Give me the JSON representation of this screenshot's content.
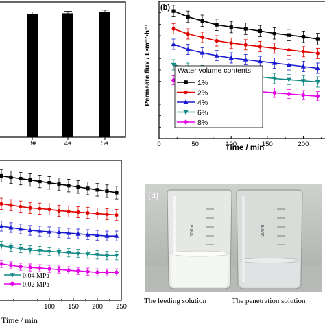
{
  "chart_data": [
    {
      "panel": "a",
      "type": "bar",
      "categories": [
        "3#",
        "4#",
        "5#"
      ],
      "values": [
        32.8,
        33.0,
        33.3
      ],
      "ylim": [
        0,
        36
      ],
      "colors": {
        "bar": "#000000"
      }
    },
    {
      "panel": "b",
      "type": "line",
      "panel_label": "(b)",
      "xlabel": "Time / min",
      "ylabel": "Permeate flux / L•m⁻²•h⁻¹",
      "xlim": [
        0,
        230
      ],
      "ylim": [
        10,
        34
      ],
      "xticks": [
        0,
        50,
        100,
        150,
        200
      ],
      "legend_title": "Water volume contents",
      "legend_position": "bottom-left",
      "x": [
        20,
        40,
        60,
        80,
        100,
        120,
        140,
        160,
        180,
        200,
        220
      ],
      "series": [
        {
          "name": "1%",
          "color": "#000000",
          "marker": "square",
          "values": [
            32.3,
            31.3,
            30.6,
            29.9,
            29.5,
            29.2,
            28.8,
            28.4,
            28.1,
            27.8,
            27.4
          ],
          "error": 1.0
        },
        {
          "name": "2%",
          "color": "#e00000",
          "marker": "circle",
          "values": [
            29.2,
            28.3,
            27.7,
            27.1,
            26.7,
            26.4,
            26.1,
            25.8,
            25.5,
            25.2,
            24.9
          ],
          "error": 0.9
        },
        {
          "name": "4%",
          "color": "#1a1ad0",
          "marker": "triangle-up",
          "values": [
            26.5,
            25.6,
            25.0,
            24.5,
            24.1,
            23.8,
            23.5,
            23.2,
            22.9,
            22.6,
            22.3
          ],
          "error": 0.9
        },
        {
          "name": "6%",
          "color": "#138a85",
          "marker": "triangle-down",
          "values": [
            22.9,
            22.3,
            21.9,
            21.5,
            21.2,
            21.0,
            20.8,
            20.5,
            20.3,
            20.1,
            19.9
          ],
          "error": 0.9
        },
        {
          "name": "8%",
          "color": "#e600e6",
          "marker": "diamond",
          "values": [
            20.2,
            19.5,
            19.1,
            18.8,
            18.6,
            18.4,
            18.2,
            18.0,
            17.8,
            17.6,
            17.4
          ],
          "error": 0.8
        }
      ]
    },
    {
      "panel": "c",
      "type": "line",
      "xlabel": "Time / min",
      "xlim": [
        0,
        250
      ],
      "ylim": [
        0,
        10
      ],
      "xticks": [
        100,
        150,
        200,
        250
      ],
      "legend_position": "bottom-left",
      "x": [
        0,
        20,
        40,
        60,
        80,
        100,
        120,
        140,
        160,
        180,
        200,
        220,
        240
      ],
      "series": [
        {
          "name": "",
          "color": "#000000",
          "marker": "square",
          "values": [
            8.9,
            8.8,
            8.7,
            8.6,
            8.5,
            8.4,
            8.3,
            8.2,
            8.1,
            8.0,
            7.9,
            7.8,
            7.7
          ],
          "error": 0.45
        },
        {
          "name": "",
          "color": "#e00000",
          "marker": "circle",
          "values": [
            6.9,
            6.8,
            6.7,
            6.6,
            6.55,
            6.5,
            6.4,
            6.35,
            6.3,
            6.25,
            6.2,
            6.15,
            6.1
          ],
          "error": 0.4
        },
        {
          "name": "",
          "color": "#1a1ad0",
          "marker": "triangle-up",
          "values": [
            5.3,
            5.2,
            5.1,
            5.0,
            4.95,
            4.9,
            4.85,
            4.8,
            4.75,
            4.7,
            4.65,
            4.6,
            4.6
          ],
          "error": 0.35
        },
        {
          "name": "0.04 MPa",
          "color": "#138a85",
          "marker": "triangle-down",
          "values": [
            3.9,
            3.8,
            3.7,
            3.6,
            3.55,
            3.5,
            3.45,
            3.4,
            3.35,
            3.3,
            3.25,
            3.2,
            3.2
          ],
          "error": 0.3
        },
        {
          "name": "0.02 MPa",
          "color": "#e600e6",
          "marker": "diamond",
          "values": [
            2.6,
            2.5,
            2.4,
            2.35,
            2.3,
            2.25,
            2.2,
            2.15,
            2.1,
            2.05,
            2.0,
            2.0,
            2.0
          ],
          "error": 0.25
        }
      ]
    }
  ],
  "photo": {
    "panel_label": "(d)",
    "left_caption": "The feeding solution",
    "right_caption": "The penetration solution",
    "beaker_text": "100ml"
  }
}
